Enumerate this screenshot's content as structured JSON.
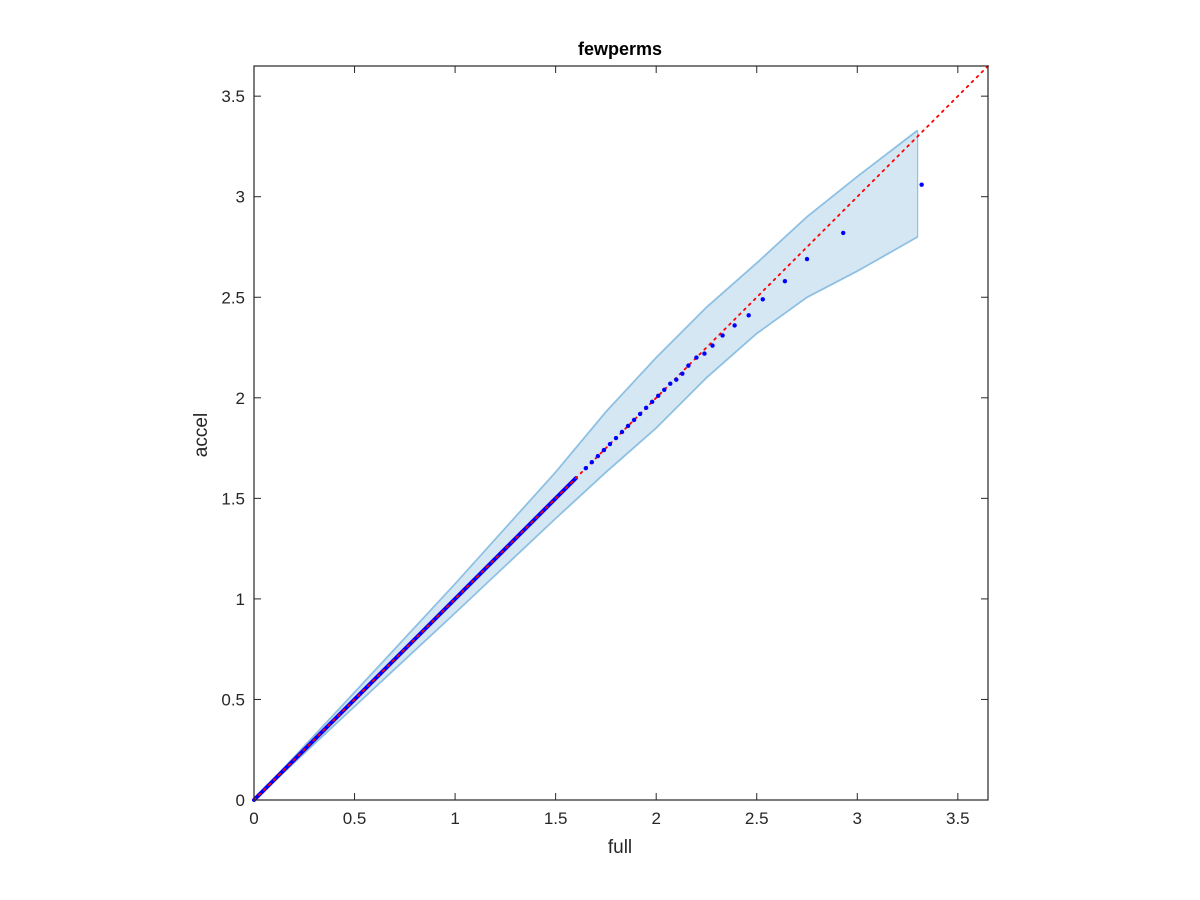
{
  "chart_data": {
    "type": "scatter",
    "title": "fewperms",
    "xlabel": "full",
    "ylabel": "accel",
    "xlim": [
      0,
      3.65
    ],
    "ylim": [
      0,
      3.65
    ],
    "xticks": [
      0,
      0.5,
      1,
      1.5,
      2,
      2.5,
      3,
      3.5
    ],
    "yticks": [
      0,
      0.5,
      1,
      1.5,
      2,
      2.5,
      3,
      3.5
    ],
    "xtick_labels": [
      "0",
      "0.5",
      "1",
      "1.5",
      "2",
      "2.5",
      "3",
      "3.5"
    ],
    "ytick_labels": [
      "0",
      "0.5",
      "1",
      "1.5",
      "2",
      "2.5",
      "3",
      "3.5"
    ],
    "grid": false,
    "colors": {
      "points": "#0000ff",
      "reference_line": "#ff0000",
      "band_fill": "#d6e7f4",
      "band_edge": "#8ec0e3",
      "axes": "#262626"
    },
    "reference_line": {
      "style": "dotted",
      "from": [
        0,
        0
      ],
      "to": [
        3.65,
        3.65
      ]
    },
    "band": {
      "x": [
        0,
        0.5,
        1.0,
        1.5,
        1.75,
        2.0,
        2.25,
        2.5,
        2.75,
        3.0,
        3.3
      ],
      "upper": [
        0,
        0.535,
        1.075,
        1.63,
        1.93,
        2.2,
        2.45,
        2.67,
        2.9,
        3.1,
        3.33
      ],
      "lower": [
        0,
        0.465,
        0.93,
        1.4,
        1.63,
        1.85,
        2.1,
        2.32,
        2.5,
        2.63,
        2.8
      ]
    },
    "dense_segment": {
      "x_start": 0,
      "x_end": 1.6,
      "slope": 1.0
    },
    "points": {
      "x": [
        1.65,
        1.68,
        1.71,
        1.74,
        1.77,
        1.8,
        1.83,
        1.86,
        1.89,
        1.92,
        1.95,
        1.98,
        2.01,
        2.04,
        2.07,
        2.1,
        2.13,
        2.16,
        2.2,
        2.24,
        2.28,
        2.33,
        2.39,
        2.46,
        2.53,
        2.64,
        2.75,
        2.93,
        3.32
      ],
      "y": [
        1.65,
        1.68,
        1.71,
        1.74,
        1.77,
        1.8,
        1.83,
        1.86,
        1.89,
        1.92,
        1.95,
        1.98,
        2.01,
        2.04,
        2.07,
        2.09,
        2.12,
        2.16,
        2.2,
        2.22,
        2.26,
        2.31,
        2.36,
        2.41,
        2.49,
        2.58,
        2.69,
        2.82,
        3.06
      ]
    }
  }
}
